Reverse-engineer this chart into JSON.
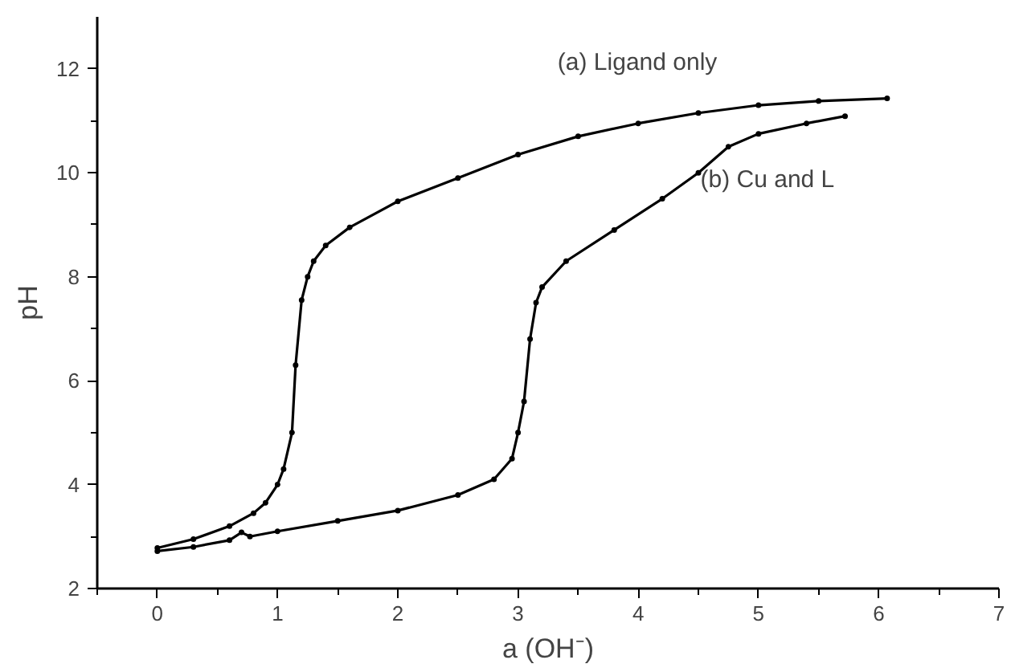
{
  "chart_data": {
    "type": "line",
    "xlabel": "a (OH⁻)",
    "ylabel": "pH",
    "xlim": [
      -0.5,
      7
    ],
    "ylim": [
      2,
      13
    ],
    "xticks": [
      0,
      1,
      2,
      3,
      4,
      5,
      6,
      7
    ],
    "yticks": [
      2,
      4,
      6,
      8,
      10,
      12
    ],
    "grid": false,
    "legend": false,
    "marker": "circle",
    "line_style": "solid",
    "series": [
      {
        "name": "(a) Ligand only",
        "color": "#000000",
        "x": [
          0,
          0.3,
          0.6,
          0.8,
          0.9,
          1.0,
          1.05,
          1.12,
          1.15,
          1.2,
          1.25,
          1.3,
          1.4,
          1.6,
          2.0,
          2.5,
          3.0,
          3.5,
          4.0,
          4.5,
          5.0,
          5.5,
          6.07
        ],
        "values": [
          2.78,
          2.95,
          3.2,
          3.45,
          3.65,
          4.0,
          4.3,
          5.0,
          6.3,
          7.55,
          8.0,
          8.3,
          8.6,
          8.95,
          9.45,
          9.9,
          10.35,
          10.7,
          10.95,
          11.15,
          11.3,
          11.38,
          11.43
        ]
      },
      {
        "name": "(b) Cu and L",
        "color": "#000000",
        "x": [
          0,
          0.3,
          0.6,
          0.7,
          0.77,
          1.0,
          1.5,
          2.0,
          2.5,
          2.8,
          2.95,
          3.0,
          3.05,
          3.1,
          3.15,
          3.2,
          3.4,
          3.8,
          4.2,
          4.5,
          4.75,
          5.0,
          5.4,
          5.72
        ],
        "values": [
          2.72,
          2.8,
          2.93,
          3.08,
          3.0,
          3.1,
          3.3,
          3.5,
          3.8,
          4.1,
          4.5,
          5.0,
          5.6,
          6.8,
          7.5,
          7.8,
          8.3,
          8.9,
          9.5,
          10.0,
          10.5,
          10.75,
          10.95,
          11.09
        ]
      }
    ]
  }
}
